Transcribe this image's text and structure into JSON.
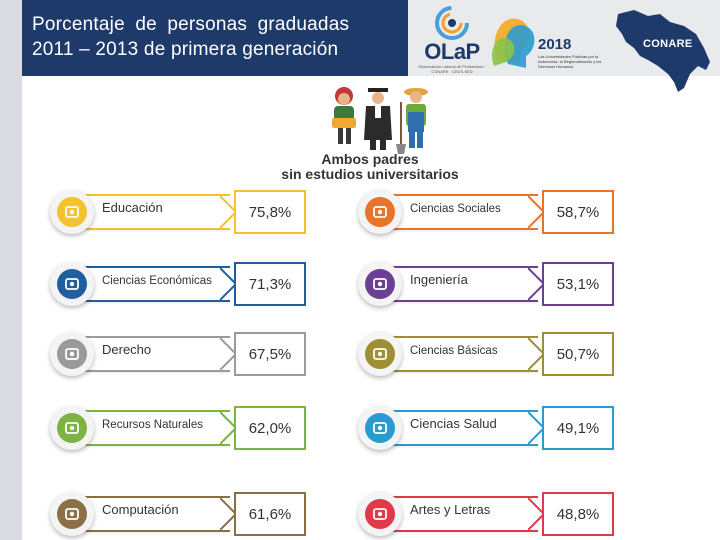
{
  "header": {
    "title_line1": "Porcentaje de personas graduadas",
    "title_line2": "2011 – 2013 de primera generación",
    "olap_logo": "OLaP",
    "olap_subtitle": "Observatorio Laboral de Profesiones · CONARE · CEDS-SED",
    "event_year": "2018",
    "event_subtitle": "Las Universidades Públicas por la Autonomía, la Regionalización y los Derechos Humanos",
    "conare_logo": "CONARE"
  },
  "illustration_caption_line1": "Ambos padres",
  "illustration_caption_line2": "sin estudios universitarios",
  "areas_left": [
    {
      "label": "Educación",
      "value": "75,8%",
      "color": "#f2c230",
      "icon": "education-icon"
    },
    {
      "label": "Ciencias Económicas",
      "value": "71,3%",
      "color": "#1f5f9e",
      "icon": "economics-icon"
    },
    {
      "label": "Derecho",
      "value": "67,5%",
      "color": "#9a9a9a",
      "icon": "law-icon"
    },
    {
      "label": "Recursos Naturales",
      "value": "62,0%",
      "color": "#7cb342",
      "icon": "natural-resources-icon"
    },
    {
      "label": "Computación",
      "value": "61,6%",
      "color": "#8b6f47",
      "icon": "computing-icon"
    }
  ],
  "areas_right": [
    {
      "label": "Ciencias Sociales",
      "value": "58,7%",
      "color": "#e8742a",
      "icon": "social-sciences-icon"
    },
    {
      "label": "Ingeniería",
      "value": "53,1%",
      "color": "#6b3f93",
      "icon": "engineering-icon"
    },
    {
      "label": "Ciencias Básicas",
      "value": "50,7%",
      "color": "#9e8f35",
      "icon": "basic-sciences-icon"
    },
    {
      "label": "Ciencias Salud",
      "value": "49,1%",
      "color": "#2a9bd0",
      "icon": "health-sciences-icon"
    },
    {
      "label": "Artes y Letras",
      "value": "48,8%",
      "color": "#e03a4a",
      "icon": "arts-icon"
    }
  ]
}
